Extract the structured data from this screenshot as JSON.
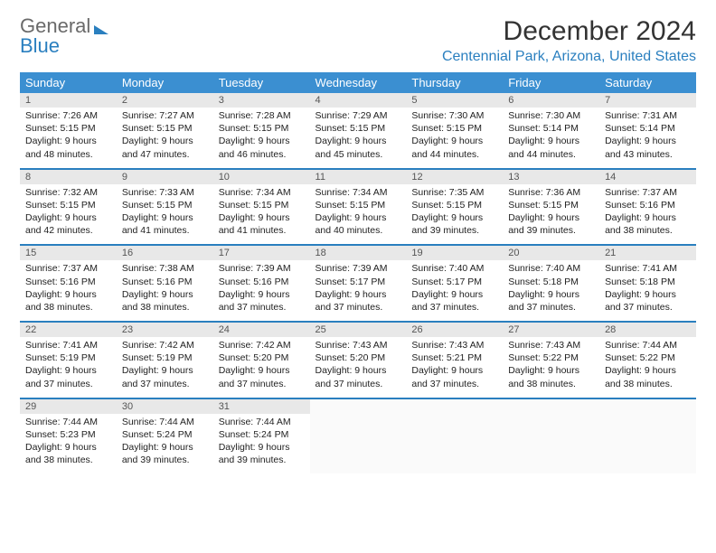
{
  "logo": {
    "word1": "General",
    "word2": "Blue"
  },
  "title": "December 2024",
  "location": "Centennial Park, Arizona, United States",
  "colors": {
    "theme": "#3b8fd1",
    "theme_dark": "#2a7fbf",
    "daynum_bg": "#e8e8e8",
    "text": "#222222",
    "muted": "#6a6a6a",
    "bg": "#ffffff"
  },
  "day_headers": [
    "Sunday",
    "Monday",
    "Tuesday",
    "Wednesday",
    "Thursday",
    "Friday",
    "Saturday"
  ],
  "weeks": [
    [
      {
        "n": "1",
        "sunrise": "7:26 AM",
        "sunset": "5:15 PM",
        "day_h": 9,
        "day_m": 48
      },
      {
        "n": "2",
        "sunrise": "7:27 AM",
        "sunset": "5:15 PM",
        "day_h": 9,
        "day_m": 47
      },
      {
        "n": "3",
        "sunrise": "7:28 AM",
        "sunset": "5:15 PM",
        "day_h": 9,
        "day_m": 46
      },
      {
        "n": "4",
        "sunrise": "7:29 AM",
        "sunset": "5:15 PM",
        "day_h": 9,
        "day_m": 45
      },
      {
        "n": "5",
        "sunrise": "7:30 AM",
        "sunset": "5:15 PM",
        "day_h": 9,
        "day_m": 44
      },
      {
        "n": "6",
        "sunrise": "7:30 AM",
        "sunset": "5:14 PM",
        "day_h": 9,
        "day_m": 44
      },
      {
        "n": "7",
        "sunrise": "7:31 AM",
        "sunset": "5:14 PM",
        "day_h": 9,
        "day_m": 43
      }
    ],
    [
      {
        "n": "8",
        "sunrise": "7:32 AM",
        "sunset": "5:15 PM",
        "day_h": 9,
        "day_m": 42
      },
      {
        "n": "9",
        "sunrise": "7:33 AM",
        "sunset": "5:15 PM",
        "day_h": 9,
        "day_m": 41
      },
      {
        "n": "10",
        "sunrise": "7:34 AM",
        "sunset": "5:15 PM",
        "day_h": 9,
        "day_m": 41
      },
      {
        "n": "11",
        "sunrise": "7:34 AM",
        "sunset": "5:15 PM",
        "day_h": 9,
        "day_m": 40
      },
      {
        "n": "12",
        "sunrise": "7:35 AM",
        "sunset": "5:15 PM",
        "day_h": 9,
        "day_m": 39
      },
      {
        "n": "13",
        "sunrise": "7:36 AM",
        "sunset": "5:15 PM",
        "day_h": 9,
        "day_m": 39
      },
      {
        "n": "14",
        "sunrise": "7:37 AM",
        "sunset": "5:16 PM",
        "day_h": 9,
        "day_m": 38
      }
    ],
    [
      {
        "n": "15",
        "sunrise": "7:37 AM",
        "sunset": "5:16 PM",
        "day_h": 9,
        "day_m": 38
      },
      {
        "n": "16",
        "sunrise": "7:38 AM",
        "sunset": "5:16 PM",
        "day_h": 9,
        "day_m": 38
      },
      {
        "n": "17",
        "sunrise": "7:39 AM",
        "sunset": "5:16 PM",
        "day_h": 9,
        "day_m": 37
      },
      {
        "n": "18",
        "sunrise": "7:39 AM",
        "sunset": "5:17 PM",
        "day_h": 9,
        "day_m": 37
      },
      {
        "n": "19",
        "sunrise": "7:40 AM",
        "sunset": "5:17 PM",
        "day_h": 9,
        "day_m": 37
      },
      {
        "n": "20",
        "sunrise": "7:40 AM",
        "sunset": "5:18 PM",
        "day_h": 9,
        "day_m": 37
      },
      {
        "n": "21",
        "sunrise": "7:41 AM",
        "sunset": "5:18 PM",
        "day_h": 9,
        "day_m": 37
      }
    ],
    [
      {
        "n": "22",
        "sunrise": "7:41 AM",
        "sunset": "5:19 PM",
        "day_h": 9,
        "day_m": 37
      },
      {
        "n": "23",
        "sunrise": "7:42 AM",
        "sunset": "5:19 PM",
        "day_h": 9,
        "day_m": 37
      },
      {
        "n": "24",
        "sunrise": "7:42 AM",
        "sunset": "5:20 PM",
        "day_h": 9,
        "day_m": 37
      },
      {
        "n": "25",
        "sunrise": "7:43 AM",
        "sunset": "5:20 PM",
        "day_h": 9,
        "day_m": 37
      },
      {
        "n": "26",
        "sunrise": "7:43 AM",
        "sunset": "5:21 PM",
        "day_h": 9,
        "day_m": 37
      },
      {
        "n": "27",
        "sunrise": "7:43 AM",
        "sunset": "5:22 PM",
        "day_h": 9,
        "day_m": 38
      },
      {
        "n": "28",
        "sunrise": "7:44 AM",
        "sunset": "5:22 PM",
        "day_h": 9,
        "day_m": 38
      }
    ],
    [
      {
        "n": "29",
        "sunrise": "7:44 AM",
        "sunset": "5:23 PM",
        "day_h": 9,
        "day_m": 38
      },
      {
        "n": "30",
        "sunrise": "7:44 AM",
        "sunset": "5:24 PM",
        "day_h": 9,
        "day_m": 39
      },
      {
        "n": "31",
        "sunrise": "7:44 AM",
        "sunset": "5:24 PM",
        "day_h": 9,
        "day_m": 39
      },
      null,
      null,
      null,
      null
    ]
  ]
}
